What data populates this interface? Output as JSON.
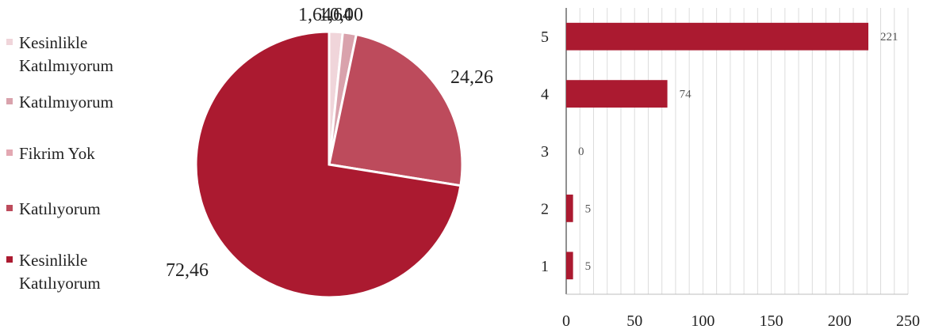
{
  "chart_data": [
    {
      "type": "pie",
      "legend_placement": "left",
      "slices": [
        {
          "label": "Kesinlikle Katılmıyorum",
          "legend_lines": [
            "Kesinlikle",
            "Katılmıyorum"
          ],
          "value": 1.64,
          "value_label": "1,64",
          "color": "#f0d5da"
        },
        {
          "label": "Katılmıyorum",
          "legend_lines": [
            "Katılmıyorum"
          ],
          "value": 1.64,
          "value_label": "1,64",
          "color": "#d9a2ac"
        },
        {
          "label": "Fikrim Yok",
          "legend_lines": [
            "Fikrim Yok"
          ],
          "value": 0.0,
          "value_label": "0,00",
          "color": "#e3a8b2"
        },
        {
          "label": "Katılıyorum",
          "legend_lines": [
            "Katılıyorum"
          ],
          "value": 24.26,
          "value_label": "24,26",
          "color": "#bd4b5c"
        },
        {
          "label": "Kesinlikle Katılıyorum",
          "legend_lines": [
            "Kesinlikle",
            "Katılıyorum"
          ],
          "value": 72.46,
          "value_label": "72,46",
          "color": "#ab1a30"
        }
      ]
    },
    {
      "type": "bar",
      "orientation": "horizontal",
      "categories": [
        "5",
        "4",
        "3",
        "2",
        "1"
      ],
      "values": [
        221,
        74,
        0,
        5,
        5
      ],
      "xlim": [
        0,
        250
      ],
      "xticks": [
        0,
        50,
        100,
        150,
        200,
        250
      ],
      "grid": true,
      "bar_color": "#ab1a30"
    }
  ]
}
